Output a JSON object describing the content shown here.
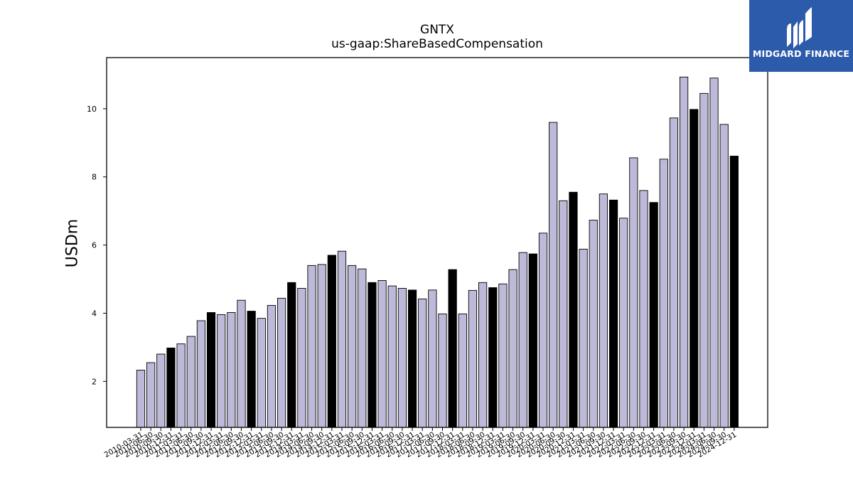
{
  "chart_data": {
    "type": "bar",
    "title": "GNTX",
    "subtitle": "us-gaap:ShareBasedCompensation",
    "ylabel": "USDm",
    "xlabel": "",
    "ylim": [
      0.65,
      11.5
    ],
    "yticks": [
      2,
      4,
      6,
      8,
      10
    ],
    "grid": false,
    "colors": {
      "quarter": "#bcbad8",
      "fiscal_year": "#000000",
      "edge": "#000000"
    },
    "categories": [
      "2010-03-31",
      "2010-06-30",
      "2010-09-30",
      "2010-12-31",
      "2011-03-31",
      "2011-06-30",
      "2011-09-30",
      "2011-12-31",
      "2012-03-31",
      "2012-06-30",
      "2012-09-30",
      "2012-12-31",
      "2013-03-31",
      "2013-06-30",
      "2013-09-30",
      "2013-12-31",
      "2014-03-31",
      "2014-06-30",
      "2014-09-30",
      "2014-12-31",
      "2015-03-31",
      "2015-06-30",
      "2015-09-30",
      "2015-12-31",
      "2016-03-31",
      "2016-06-30",
      "2016-09-30",
      "2016-12-31",
      "2017-03-31",
      "2017-06-30",
      "2017-09-30",
      "2017-12-31",
      "2018-03-31",
      "2018-06-30",
      "2018-09-30",
      "2018-12-31",
      "2019-03-31",
      "2019-06-30",
      "2019-09-30",
      "2019-12-31",
      "2020-03-31",
      "2020-06-30",
      "2020-09-30",
      "2020-12-31",
      "2021-03-31",
      "2021-06-30",
      "2021-09-30",
      "2021-12-31",
      "2022-03-31",
      "2022-06-30",
      "2022-09-30",
      "2022-12-31",
      "2023-03-31",
      "2023-06-30",
      "2023-09-30",
      "2023-12-31",
      "2024-03-31",
      "2024-06-30",
      "2024-09-30",
      "2024-12-31"
    ],
    "values": [
      2.33,
      2.55,
      2.8,
      2.98,
      3.1,
      3.32,
      3.78,
      4.02,
      3.96,
      4.02,
      4.38,
      4.06,
      3.85,
      4.23,
      4.44,
      4.9,
      4.73,
      5.4,
      5.43,
      5.7,
      5.82,
      5.4,
      5.3,
      4.9,
      4.96,
      4.8,
      4.73,
      4.68,
      4.42,
      4.68,
      3.98,
      5.28,
      3.98,
      4.67,
      4.9,
      4.75,
      4.86,
      5.28,
      5.78,
      5.74,
      6.35,
      9.6,
      7.3,
      7.55,
      5.88,
      6.73,
      7.5,
      7.32,
      6.79,
      8.56,
      7.6,
      7.25,
      8.52,
      9.73,
      10.93,
      9.98,
      10.45,
      10.9,
      9.54,
      8.61
    ],
    "highlight_every": 4
  },
  "logo": {
    "text": "MIDGARD FINANCE",
    "icon": "midgard-logo-icon"
  }
}
